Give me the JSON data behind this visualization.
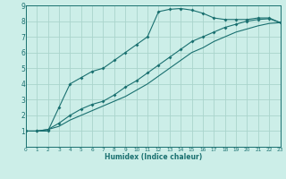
{
  "xlabel": "Humidex (Indice chaleur)",
  "bg_color": "#cceee8",
  "grid_color": "#aad4cc",
  "line_color": "#1a7070",
  "xmin": 0,
  "xmax": 23,
  "ymin": 0,
  "ymax": 9,
  "line1_x": [
    0,
    1,
    2,
    3,
    4,
    5,
    6,
    7,
    8,
    9,
    10,
    11,
    12,
    13,
    14,
    15,
    16,
    17,
    18,
    19,
    20,
    21,
    22,
    23
  ],
  "line1_y": [
    1.0,
    1.0,
    1.0,
    2.5,
    4.0,
    4.4,
    4.8,
    5.0,
    5.5,
    6.0,
    6.5,
    7.0,
    8.6,
    8.75,
    8.8,
    8.7,
    8.5,
    8.2,
    8.1,
    8.1,
    8.1,
    8.2,
    8.2,
    7.9
  ],
  "line2_x": [
    0,
    1,
    2,
    3,
    4,
    5,
    6,
    7,
    8,
    9,
    10,
    11,
    12,
    13,
    14,
    15,
    16,
    17,
    18,
    19,
    20,
    21,
    22,
    23
  ],
  "line2_y": [
    1.0,
    1.0,
    1.1,
    1.5,
    2.0,
    2.4,
    2.7,
    2.9,
    3.3,
    3.8,
    4.2,
    4.7,
    5.2,
    5.7,
    6.2,
    6.7,
    7.0,
    7.3,
    7.6,
    7.8,
    8.0,
    8.1,
    8.15,
    7.9
  ],
  "line3_x": [
    0,
    1,
    2,
    3,
    4,
    5,
    6,
    7,
    8,
    9,
    10,
    11,
    12,
    13,
    14,
    15,
    16,
    17,
    18,
    19,
    20,
    21,
    22,
    23
  ],
  "line3_y": [
    1.0,
    1.0,
    1.1,
    1.3,
    1.7,
    2.0,
    2.3,
    2.6,
    2.9,
    3.2,
    3.6,
    4.0,
    4.5,
    5.0,
    5.5,
    6.0,
    6.3,
    6.7,
    7.0,
    7.3,
    7.5,
    7.7,
    7.85,
    7.9
  ]
}
